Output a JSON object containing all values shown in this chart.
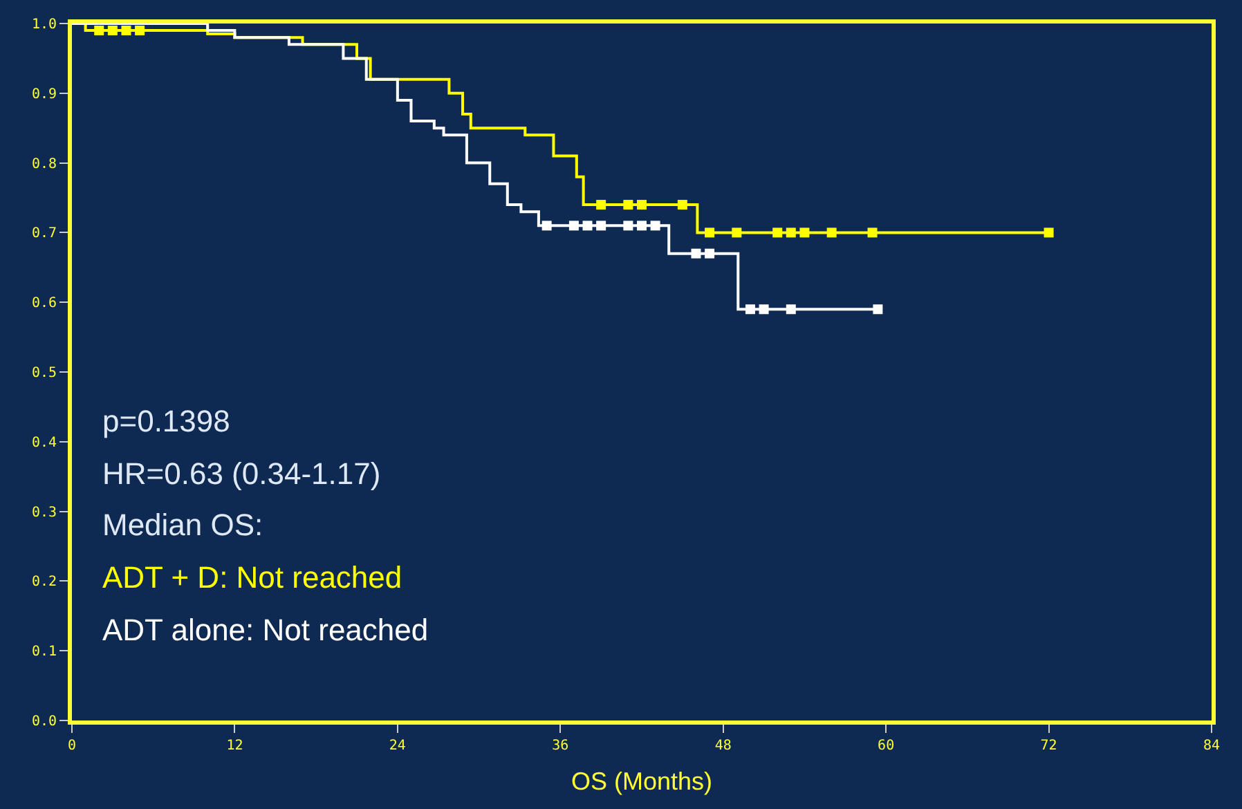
{
  "chart_data": {
    "type": "step",
    "xlabel": "OS (Months)",
    "xlim": [
      0,
      84
    ],
    "xticks": [
      0,
      12,
      24,
      36,
      48,
      60,
      72,
      84
    ],
    "ylim": [
      0,
      1.0
    ],
    "yticks": [
      {
        "value": 0,
        "label": "0.0"
      },
      0.1,
      0.2,
      0.3,
      0.4,
      0.5,
      0.6,
      0.7,
      0.8,
      0.9,
      {
        "value": 1,
        "label": "1.0"
      }
    ],
    "grid": false,
    "series": [
      {
        "color": "#ffff00",
        "x": [
          0,
          1,
          10,
          12,
          17,
          21,
          22,
          27.8,
          28.8,
          29.4,
          33.4,
          35.5,
          37.2,
          37.7,
          46.1,
          72
        ],
        "values": [
          1.0,
          0.99,
          0.985,
          0.98,
          0.97,
          0.95,
          0.92,
          0.9,
          0.87,
          0.85,
          0.84,
          0.81,
          0.78,
          0.74,
          0.7,
          0.7
        ]
      },
      {
        "color": "#ffffff",
        "x": [
          0,
          10,
          12,
          16,
          20,
          21.7,
          24,
          25,
          26.7,
          27.4,
          29.1,
          30.8,
          32.1,
          33.1,
          34.4,
          44,
          49.1,
          59.4
        ],
        "values": [
          1.0,
          0.99,
          0.98,
          0.97,
          0.95,
          0.92,
          0.89,
          0.86,
          0.85,
          0.84,
          0.8,
          0.77,
          0.74,
          0.73,
          0.71,
          0.67,
          0.59,
          0.59
        ]
      },
      {
        "type": "scatter",
        "marker": "square",
        "color": "#ffff00",
        "x": [
          2,
          3,
          4,
          5,
          39,
          41,
          42,
          45,
          47,
          49,
          52,
          53,
          54,
          56,
          59,
          72
        ],
        "values": [
          0.99,
          0.99,
          0.99,
          0.99,
          0.74,
          0.74,
          0.74,
          0.74,
          0.7,
          0.7,
          0.7,
          0.7,
          0.7,
          0.7,
          0.7,
          0.7
        ]
      },
      {
        "type": "scatter",
        "marker": "square",
        "color": "#ffffff",
        "x": [
          35,
          37,
          38,
          39,
          41,
          42,
          43,
          46,
          47,
          50,
          51,
          53,
          59.4
        ],
        "values": [
          0.71,
          0.71,
          0.71,
          0.71,
          0.71,
          0.71,
          0.71,
          0.67,
          0.67,
          0.59,
          0.59,
          0.59,
          0.59
        ]
      }
    ],
    "annotations": [
      "p=0.1398",
      "HR=0.63 (0.34-1.17)",
      "Median OS:",
      "ADT + D: Not reached",
      "ADT alone: Not reached"
    ]
  }
}
